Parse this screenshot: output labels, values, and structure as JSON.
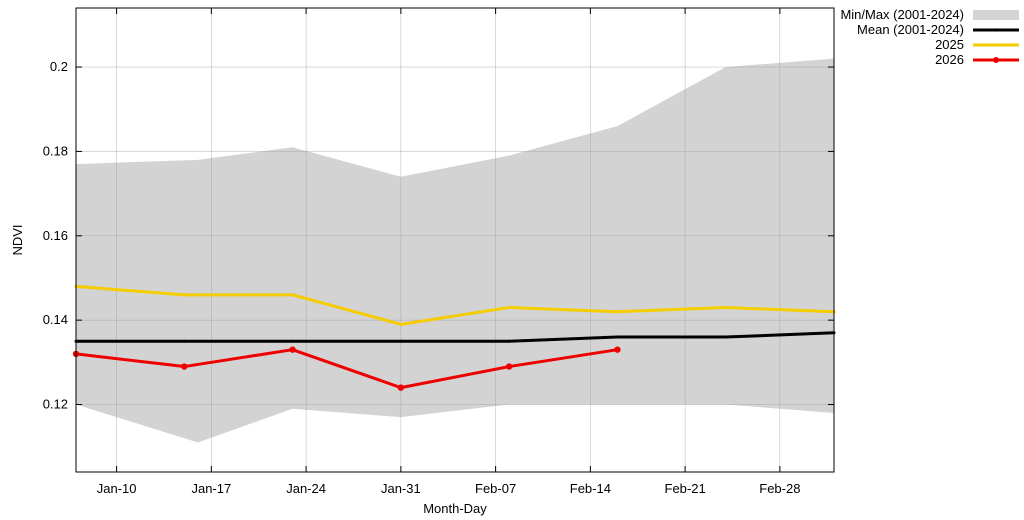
{
  "chart_data": {
    "type": "line",
    "title": "",
    "xlabel": "Month-Day",
    "ylabel": "NDVI",
    "xlim": [
      0,
      56
    ],
    "ylim": [
      0.104,
      0.214
    ],
    "grid": true,
    "legend_position": "top-right outside",
    "x_ticks": [
      {
        "x": 3,
        "label": "Jan-10"
      },
      {
        "x": 10,
        "label": "Jan-17"
      },
      {
        "x": 17,
        "label": "Jan-24"
      },
      {
        "x": 24,
        "label": "Jan-31"
      },
      {
        "x": 31,
        "label": "Feb-07"
      },
      {
        "x": 38,
        "label": "Feb-14"
      },
      {
        "x": 45,
        "label": "Feb-21"
      },
      {
        "x": 52,
        "label": "Feb-28"
      }
    ],
    "y_ticks": [
      0.12,
      0.14,
      0.16,
      0.18,
      0.2
    ],
    "y_tick_labels": [
      "0.12",
      "0.14",
      "0.16",
      "0.18",
      "0.2"
    ],
    "band": {
      "name": "Min/Max (2001-2024)",
      "color": "#d3d3d3",
      "x": [
        0,
        9,
        16,
        24,
        32,
        40,
        48,
        56
      ],
      "min": [
        0.12,
        0.111,
        0.119,
        0.117,
        0.12,
        0.12,
        0.12,
        0.118
      ],
      "max": [
        0.177,
        0.178,
        0.181,
        0.174,
        0.179,
        0.186,
        0.2,
        0.202
      ]
    },
    "series": [
      {
        "name": "Mean (2001-2024)",
        "color": "#000000",
        "markers": false,
        "x": [
          0,
          8,
          16,
          24,
          32,
          40,
          48,
          56
        ],
        "values": [
          0.135,
          0.135,
          0.135,
          0.135,
          0.135,
          0.136,
          0.136,
          0.137
        ]
      },
      {
        "name": "2025",
        "color": "#f5cc00",
        "markers": false,
        "x": [
          0,
          8,
          16,
          24,
          32,
          40,
          48,
          56
        ],
        "values": [
          0.148,
          0.146,
          0.146,
          0.139,
          0.143,
          0.142,
          0.143,
          0.142
        ]
      },
      {
        "name": "2026",
        "color": "#ee0000",
        "markers": true,
        "x": [
          0,
          8,
          16,
          24,
          32,
          40
        ],
        "values": [
          0.132,
          0.129,
          0.133,
          0.124,
          0.129,
          0.133
        ]
      }
    ]
  }
}
